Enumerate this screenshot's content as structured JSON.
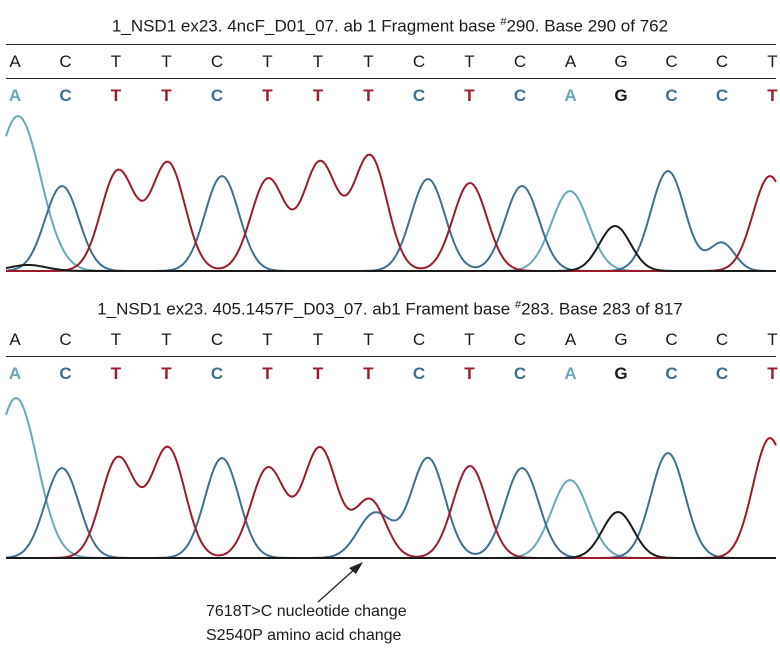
{
  "panel_top": {
    "title_prefix": "1_NSD1 ex23. 4ncF_D01_07. ab 1 Fragment base ",
    "title_hash": "#",
    "title_suffix": "290. Base 290 of 762",
    "reference": [
      "A",
      "C",
      "T",
      "T",
      "C",
      "T",
      "T",
      "T",
      "C",
      "T",
      "C",
      "A",
      "G",
      "C",
      "C",
      "T"
    ],
    "called": [
      "A",
      "C",
      "T",
      "T",
      "C",
      "T",
      "T",
      "T",
      "C",
      "T",
      "C",
      "A",
      "G",
      "C",
      "C",
      "T"
    ]
  },
  "panel_bottom": {
    "title_prefix": "1_NSD1 ex23. 405.1457F_D03_07. ab1 Frament base ",
    "title_hash": "#",
    "title_suffix": "283. Base 283 of 817",
    "reference": [
      "A",
      "C",
      "T",
      "T",
      "C",
      "T",
      "T",
      "T",
      "C",
      "T",
      "C",
      "A",
      "G",
      "C",
      "C",
      "T"
    ],
    "called": [
      "A",
      "C",
      "T",
      "T",
      "C",
      "T",
      "T",
      "T",
      "C",
      "T",
      "C",
      "A",
      "G",
      "C",
      "C",
      "T"
    ]
  },
  "annotation": {
    "line1": "7618T>C nucleotide  change",
    "line2": "S2540P   amino acid change"
  },
  "colors": {
    "A": "#6aa8b8",
    "C": "#3f6f8f",
    "T": "#9b1b2a",
    "G": "#1a1a1a"
  }
}
